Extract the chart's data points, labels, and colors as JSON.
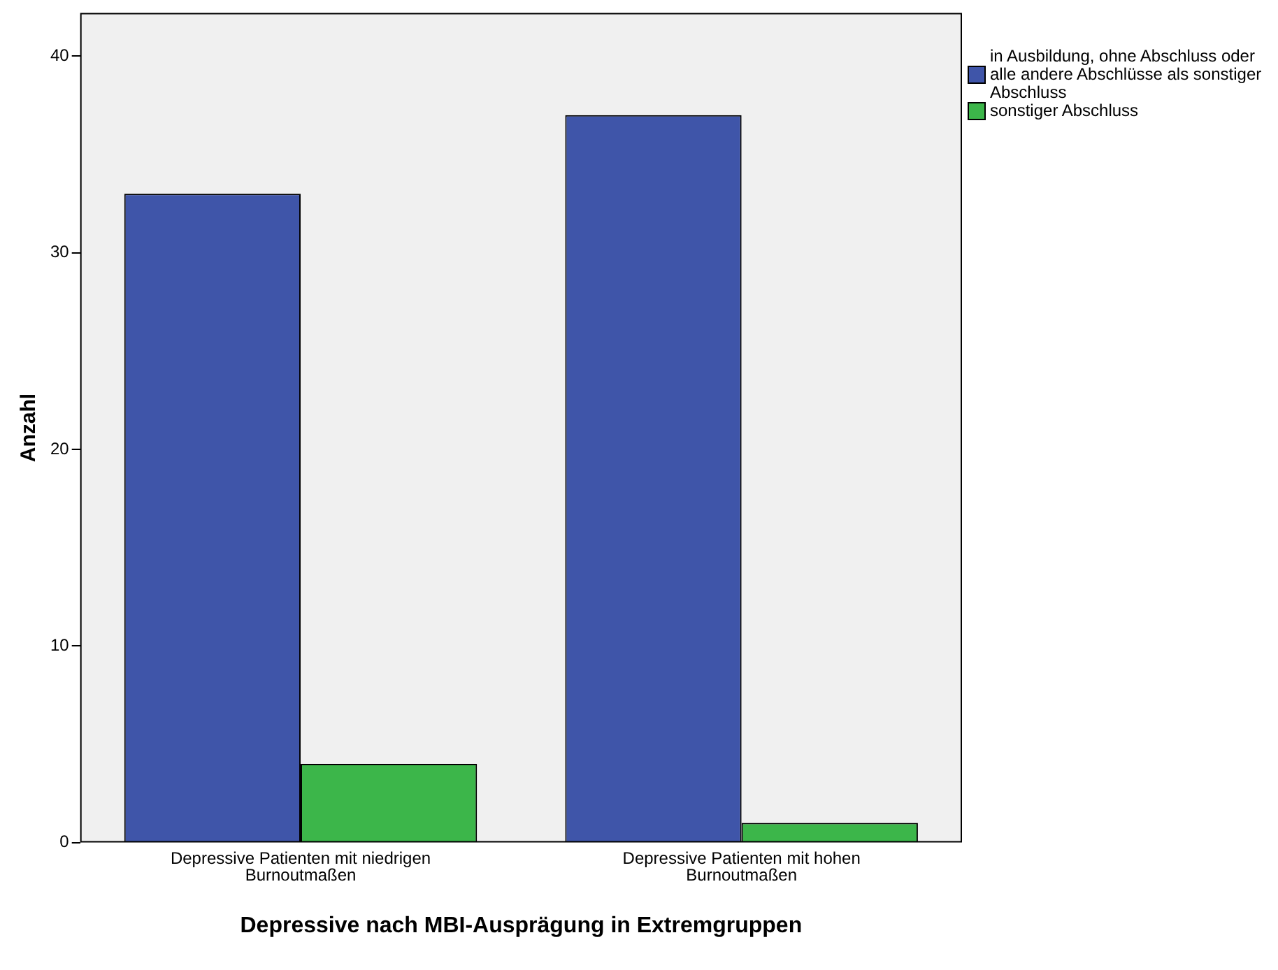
{
  "chart_data": {
    "type": "bar",
    "xlabel": "Depressive nach MBI-Ausprägung in Extremgruppen",
    "ylabel": "Anzahl",
    "categories": [
      "Depressive Patienten mit niedrigen Burnoutmaßen",
      "Depressive Patienten mit hohen Burnoutmaßen"
    ],
    "series": [
      {
        "name": "in Ausbildung, ohne Abschluss oder alle andere Abschlüsse als sonstiger Abschluss",
        "color": "#3f55a9",
        "values": [
          33,
          37
        ]
      },
      {
        "name": "sonstiger Abschluss",
        "color": "#3cb64a",
        "values": [
          4,
          1
        ]
      }
    ],
    "ylim": [
      0,
      42.2
    ],
    "yticks": [
      0,
      10,
      20,
      30,
      40
    ],
    "grid": false,
    "legend": "right"
  }
}
